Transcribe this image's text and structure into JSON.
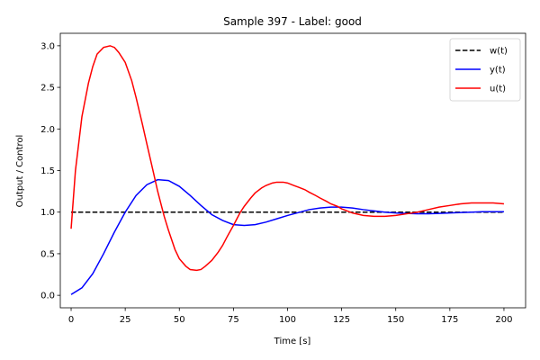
{
  "chart_data": {
    "type": "line",
    "title": "Sample 397 - Label: good",
    "xlabel": "Time [s]",
    "ylabel": "Output / Control",
    "xlim": [
      -5,
      210
    ],
    "ylim": [
      -0.15,
      3.15
    ],
    "x_ticks": [
      0,
      25,
      50,
      75,
      100,
      125,
      150,
      175,
      200
    ],
    "x_tick_labels": [
      "0",
      "25",
      "50",
      "75",
      "100",
      "125",
      "150",
      "175",
      "200"
    ],
    "y_ticks": [
      0.0,
      0.5,
      1.0,
      1.5,
      2.0,
      2.5,
      3.0
    ],
    "y_tick_labels": [
      "0.0",
      "0.5",
      "1.0",
      "1.5",
      "2.0",
      "2.5",
      "3.0"
    ],
    "grid": false,
    "legend_position": "top-right",
    "series": [
      {
        "name": "w(t)",
        "color": "#000000",
        "dash": "dashed",
        "x": [
          0,
          200
        ],
        "y": [
          1.0,
          1.0
        ]
      },
      {
        "name": "y(t)",
        "color": "#0000ff",
        "dash": "solid",
        "x": [
          0,
          5,
          10,
          15,
          20,
          25,
          30,
          35,
          40,
          45,
          50,
          55,
          60,
          65,
          70,
          75,
          80,
          85,
          90,
          95,
          100,
          105,
          110,
          115,
          120,
          125,
          130,
          135,
          140,
          145,
          150,
          155,
          160,
          165,
          170,
          175,
          180,
          185,
          190,
          195,
          200
        ],
        "y": [
          0.01,
          0.09,
          0.26,
          0.5,
          0.76,
          1.0,
          1.2,
          1.33,
          1.39,
          1.38,
          1.31,
          1.2,
          1.08,
          0.97,
          0.9,
          0.85,
          0.84,
          0.85,
          0.88,
          0.92,
          0.96,
          0.995,
          1.03,
          1.05,
          1.06,
          1.06,
          1.05,
          1.03,
          1.015,
          1.0,
          0.99,
          0.985,
          0.98,
          0.98,
          0.985,
          0.99,
          0.995,
          1.0,
          1.005,
          1.005,
          1.005
        ]
      },
      {
        "name": "u(t)",
        "color": "#ff0000",
        "dash": "solid",
        "x": [
          0,
          2,
          5,
          8,
          10,
          12,
          15,
          18,
          20,
          22,
          25,
          28,
          30,
          33,
          35,
          38,
          40,
          43,
          45,
          48,
          50,
          53,
          55,
          58,
          60,
          62,
          65,
          68,
          70,
          72,
          75,
          78,
          80,
          83,
          85,
          88,
          90,
          93,
          95,
          98,
          100,
          103,
          105,
          108,
          110,
          113,
          115,
          118,
          120,
          123,
          125,
          128,
          130,
          135,
          140,
          145,
          150,
          155,
          160,
          165,
          170,
          175,
          180,
          185,
          190,
          195,
          200
        ],
        "y": [
          0.8,
          1.5,
          2.15,
          2.55,
          2.75,
          2.9,
          2.98,
          3.0,
          2.98,
          2.92,
          2.8,
          2.58,
          2.38,
          2.05,
          1.82,
          1.48,
          1.25,
          0.95,
          0.78,
          0.55,
          0.44,
          0.35,
          0.31,
          0.3,
          0.31,
          0.35,
          0.42,
          0.52,
          0.6,
          0.7,
          0.84,
          0.99,
          1.07,
          1.17,
          1.23,
          1.29,
          1.32,
          1.35,
          1.36,
          1.36,
          1.35,
          1.32,
          1.3,
          1.27,
          1.24,
          1.2,
          1.17,
          1.13,
          1.1,
          1.07,
          1.04,
          1.01,
          0.99,
          0.96,
          0.95,
          0.95,
          0.96,
          0.98,
          1.0,
          1.03,
          1.06,
          1.08,
          1.1,
          1.11,
          1.11,
          1.11,
          1.1
        ]
      }
    ]
  }
}
